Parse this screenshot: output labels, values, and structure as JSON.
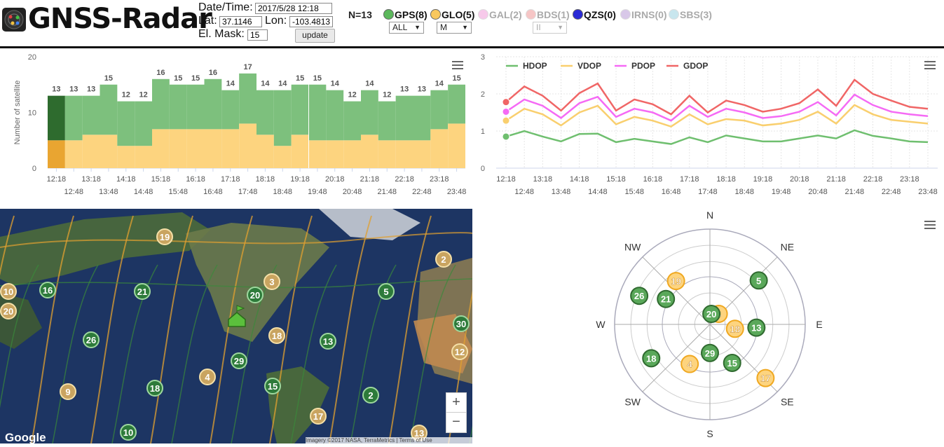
{
  "header": {
    "title": "GNSS-Radar",
    "datetime_label": "Date/Time:",
    "datetime_value": "2017/5/28 12:18",
    "lat_label": "Lat:",
    "lat_value": "37.1146",
    "lon_label": "Lon:",
    "lon_value": "-103.4813",
    "elmask_label": "El. Mask:",
    "elmask_value": "15",
    "update_label": "update",
    "n_label": "N=13",
    "systems": [
      {
        "label": "GPS(8)",
        "color": "#5cb85c",
        "active": true
      },
      {
        "label": "GLO(5)",
        "color": "#f9c85e",
        "active": true
      },
      {
        "label": "GAL(2)",
        "color": "#f7c9ea",
        "active": false
      },
      {
        "label": "BDS(1)",
        "color": "#f6c6c6",
        "active": false
      },
      {
        "label": "QZS(0)",
        "color": "#2a2ad6",
        "active": true
      },
      {
        "label": "IRNS(0)",
        "color": "#d8c8e8",
        "active": false
      },
      {
        "label": "SBS(3)",
        "color": "#c8e6ee",
        "active": false
      }
    ],
    "selects": {
      "gps": "ALL",
      "glo": "M",
      "bds": "II"
    }
  },
  "chart_data": [
    {
      "type": "bar",
      "ylabel": "Number of satellite",
      "ylim": [
        0,
        20
      ],
      "yticks": [
        "0",
        "10",
        "20"
      ],
      "categories": [
        "12:18",
        "12:48",
        "13:18",
        "13:48",
        "14:18",
        "14:48",
        "15:18",
        "15:48",
        "16:18",
        "16:48",
        "17:18",
        "17:48",
        "18:18",
        "18:48",
        "19:18",
        "19:48",
        "20:18",
        "20:48",
        "21:18",
        "21:48",
        "22:18",
        "22:48",
        "23:18",
        "23:48"
      ],
      "series": [
        {
          "name": "GLO",
          "values": [
            5,
            5,
            6,
            6,
            4,
            4,
            7,
            7,
            7,
            7,
            7,
            8,
            6,
            4,
            6,
            5,
            5,
            5,
            6,
            5,
            5,
            5,
            7,
            8
          ]
        },
        {
          "name": "GPS",
          "values": [
            8,
            8,
            7,
            9,
            8,
            8,
            9,
            8,
            8,
            9,
            7,
            9,
            8,
            10,
            9,
            10,
            9,
            7,
            8,
            7,
            8,
            8,
            7,
            7
          ]
        }
      ],
      "totals": [
        "13",
        "13",
        "13",
        "15",
        "12",
        "12",
        "16",
        "15",
        "15",
        "16",
        "14",
        "17",
        "14",
        "14",
        "15",
        "15",
        "14",
        "12",
        "14",
        "12",
        "13",
        "13",
        "14",
        "15"
      ],
      "colors": {
        "GPS": "#7dc07d",
        "GLO": "#fdd47f",
        "GPS_sel": "#2e6b2e",
        "GLO_sel": "#e9a531"
      }
    },
    {
      "type": "line",
      "ylim": [
        0,
        3
      ],
      "yticks": [
        "0",
        "1",
        "2",
        "3"
      ],
      "categories": [
        "12:18",
        "12:48",
        "13:18",
        "13:48",
        "14:18",
        "14:48",
        "15:18",
        "15:48",
        "16:18",
        "16:48",
        "17:18",
        "17:48",
        "18:18",
        "18:48",
        "19:18",
        "19:48",
        "20:18",
        "20:48",
        "21:18",
        "21:48",
        "22:18",
        "22:48",
        "23:18",
        "23:48"
      ],
      "series": [
        {
          "name": "HDOP",
          "color": "#6fbf6f",
          "values": [
            0.85,
            1.0,
            0.85,
            0.72,
            0.92,
            0.93,
            0.7,
            0.79,
            0.72,
            0.65,
            0.83,
            0.7,
            0.88,
            0.8,
            0.72,
            0.72,
            0.8,
            0.88,
            0.8,
            1.02,
            0.87,
            0.8,
            0.72,
            0.7
          ]
        },
        {
          "name": "VDOP",
          "color": "#f9cf6e",
          "values": [
            1.28,
            1.6,
            1.45,
            1.15,
            1.5,
            1.68,
            1.18,
            1.38,
            1.28,
            1.12,
            1.45,
            1.18,
            1.32,
            1.28,
            1.15,
            1.2,
            1.3,
            1.52,
            1.2,
            1.7,
            1.45,
            1.3,
            1.25,
            1.2
          ]
        },
        {
          "name": "PDOP",
          "color": "#f56af5",
          "values": [
            1.52,
            1.85,
            1.68,
            1.35,
            1.75,
            1.92,
            1.38,
            1.6,
            1.5,
            1.28,
            1.68,
            1.38,
            1.6,
            1.5,
            1.35,
            1.4,
            1.52,
            1.78,
            1.42,
            1.98,
            1.7,
            1.52,
            1.45,
            1.4
          ]
        },
        {
          "name": "GDOP",
          "color": "#f06666",
          "values": [
            1.78,
            2.2,
            1.95,
            1.55,
            2.02,
            2.28,
            1.55,
            1.85,
            1.72,
            1.45,
            1.95,
            1.5,
            1.82,
            1.7,
            1.52,
            1.6,
            1.75,
            2.12,
            1.68,
            2.38,
            2.0,
            1.82,
            1.65,
            1.6
          ]
        }
      ]
    },
    {
      "type": "scatter",
      "directions": [
        "N",
        "NE",
        "E",
        "SE",
        "S",
        "SW",
        "W",
        "NW"
      ],
      "satellites": [
        {
          "id": "5",
          "sys": "GPS",
          "az": 48,
          "el": 28
        },
        {
          "id": "26",
          "sys": "GPS",
          "az": 292,
          "el": 18
        },
        {
          "id": "21",
          "sys": "GPS",
          "az": 300,
          "el": 42
        },
        {
          "id": "19",
          "sys": "GLO",
          "az": 322,
          "el": 38
        },
        {
          "id": "3",
          "sys": "GLO",
          "az": 40,
          "el": 77
        },
        {
          "id": "20",
          "sys": "GPS",
          "az": 8,
          "el": 80
        },
        {
          "id": "18",
          "sys": "GLO",
          "az": 100,
          "el": 66
        },
        {
          "id": "13",
          "sys": "GPS",
          "az": 94,
          "el": 46
        },
        {
          "id": "29",
          "sys": "GPS",
          "az": 180,
          "el": 63
        },
        {
          "id": "15",
          "sys": "GPS",
          "az": 150,
          "el": 48
        },
        {
          "id": "4",
          "sys": "GLO",
          "az": 207,
          "el": 48
        },
        {
          "id": "18",
          "sys": "GPS",
          "az": 240,
          "el": 26
        },
        {
          "id": "17",
          "sys": "GLO",
          "az": 134,
          "el": 17
        }
      ]
    }
  ],
  "map": {
    "markers": [
      {
        "id": "19",
        "sys": "GLO"
      },
      {
        "id": "2",
        "sys": "GLO"
      },
      {
        "id": "10",
        "sys": "GLO"
      },
      {
        "id": "16",
        "sys": "GPS"
      },
      {
        "id": "21",
        "sys": "GPS"
      },
      {
        "id": "3",
        "sys": "GLO"
      },
      {
        "id": "20",
        "sys": "GPS"
      },
      {
        "id": "5",
        "sys": "GPS"
      },
      {
        "id": "20",
        "sys": "GLO"
      },
      {
        "id": "30",
        "sys": "GPS"
      },
      {
        "id": "26",
        "sys": "GPS"
      },
      {
        "id": "18",
        "sys": "GLO"
      },
      {
        "id": "13",
        "sys": "GPS"
      },
      {
        "id": "12",
        "sys": "GLO"
      },
      {
        "id": "29",
        "sys": "GPS"
      },
      {
        "id": "4",
        "sys": "GLO"
      },
      {
        "id": "15",
        "sys": "GPS"
      },
      {
        "id": "9",
        "sys": "GLO"
      },
      {
        "id": "18",
        "sys": "GPS"
      },
      {
        "id": "2",
        "sys": "GPS"
      },
      {
        "id": "17",
        "sys": "GLO"
      },
      {
        "id": "10",
        "sys": "GPS"
      },
      {
        "id": "13",
        "sys": "GLO"
      }
    ],
    "zoom_in": "+",
    "zoom_out": "−",
    "google_label": "Google",
    "attribution": "Imagery ©2017 NASA, TerraMetrics",
    "terms": "Terms of Use"
  }
}
